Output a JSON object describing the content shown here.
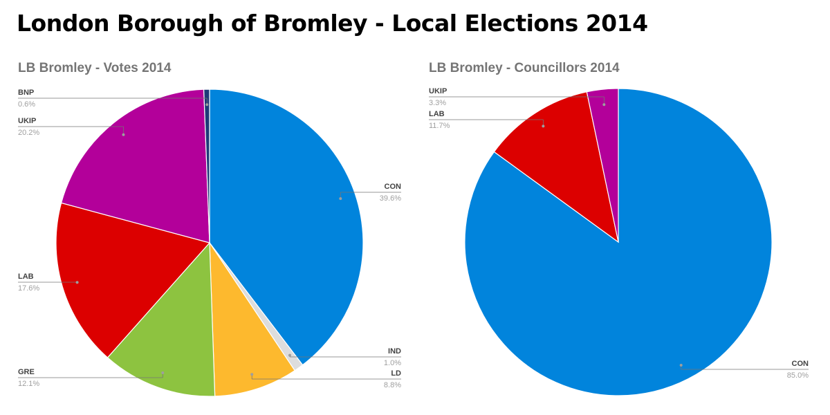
{
  "page": {
    "title": "London Borough of Bromley - Local Elections 2014"
  },
  "colors": {
    "CON": "#0184dc",
    "LAB": "#dc0000",
    "UKIP": "#b3009a",
    "BNP": "#1e3a78",
    "GRE": "#8dc340",
    "LD": "#fdb92e",
    "IND": "#dddddd",
    "leader": "#757575",
    "dot": "#9e9e9e"
  },
  "chart_data": [
    {
      "type": "pie",
      "title": "LB Bromley - Votes 2014",
      "slices": [
        {
          "label": "CON",
          "value": 39.6,
          "display": "39.6%"
        },
        {
          "label": "IND",
          "value": 1.0,
          "display": "1.0%"
        },
        {
          "label": "LD",
          "value": 8.8,
          "display": "8.8%"
        },
        {
          "label": "GRE",
          "value": 12.1,
          "display": "12.1%"
        },
        {
          "label": "LAB",
          "value": 17.6,
          "display": "17.6%"
        },
        {
          "label": "UKIP",
          "value": 20.2,
          "display": "20.2%"
        },
        {
          "label": "BNP",
          "value": 0.6,
          "display": "0.6%"
        }
      ]
    },
    {
      "type": "pie",
      "title": "LB Bromley - Councillors 2014",
      "slices": [
        {
          "label": "CON",
          "value": 85.0,
          "display": "85.0%"
        },
        {
          "label": "LAB",
          "value": 11.7,
          "display": "11.7%"
        },
        {
          "label": "UKIP",
          "value": 3.3,
          "display": "3.3%"
        }
      ]
    }
  ]
}
